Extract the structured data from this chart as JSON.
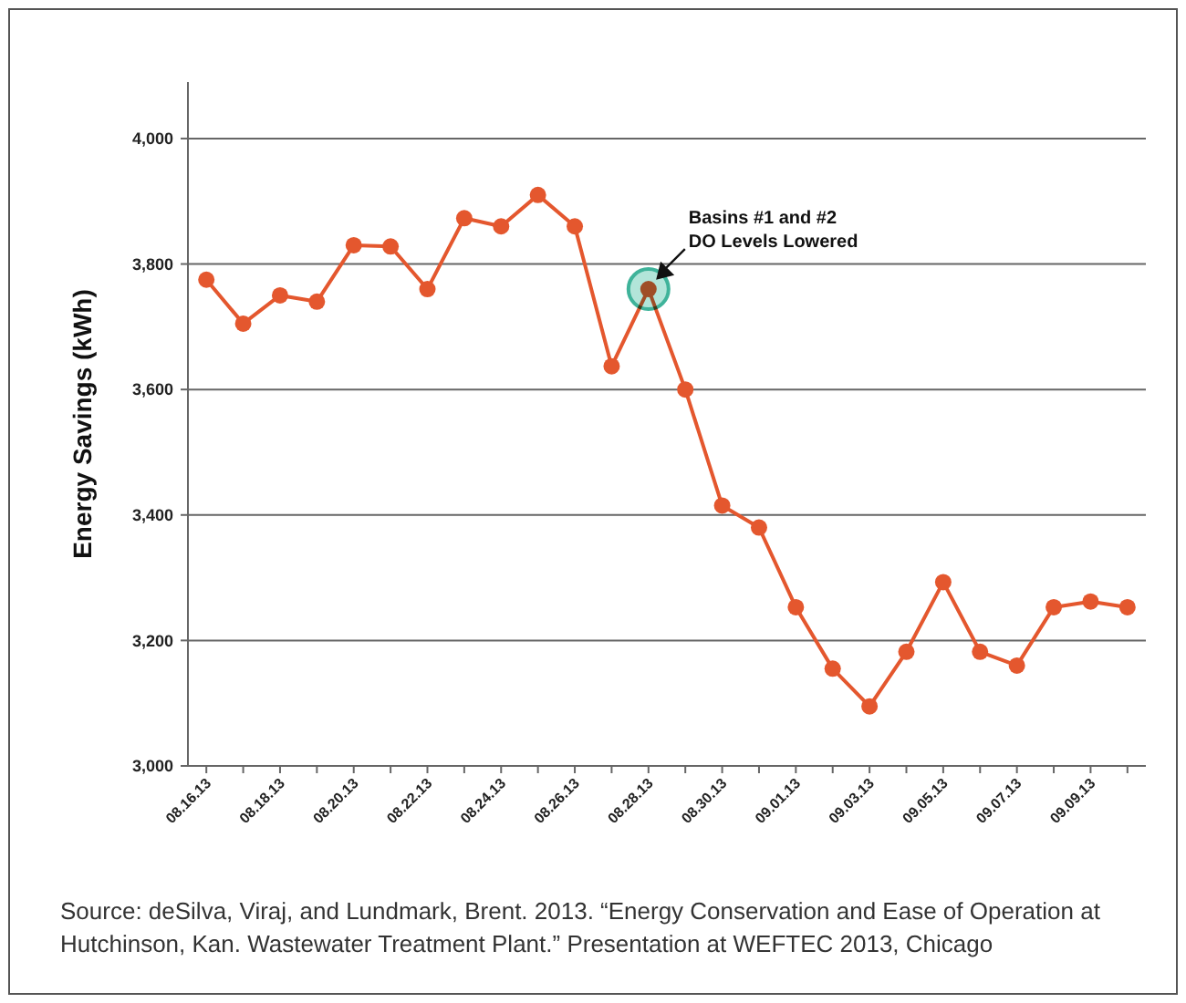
{
  "chart_data": {
    "type": "line",
    "ylabel": "Energy Savings (kWh)",
    "categories": [
      "08.16.13",
      null,
      "08.18.13",
      null,
      "08.20.13",
      null,
      "08.22.13",
      null,
      "08.24.13",
      null,
      "08.26.13",
      null,
      "08.28.13",
      null,
      "08.30.13",
      null,
      "09.01.13",
      null,
      "09.03.13",
      null,
      "09.05.13",
      null,
      "09.07.13",
      null,
      "09.09.13",
      null
    ],
    "series": [
      {
        "color": "#e4572e",
        "values": [
          3775,
          3705,
          3750,
          3740,
          3830,
          3828,
          3760,
          3873,
          3860,
          3910,
          3860,
          3637,
          3760,
          3600,
          3415,
          3380,
          3253,
          3155,
          3095,
          3182,
          3293,
          3182,
          3160,
          3253,
          3262,
          3253
        ]
      }
    ],
    "ylim": [
      3000,
      4090
    ],
    "yticks": [
      {
        "value": 3000,
        "label": "3,000"
      },
      {
        "value": 3200,
        "label": "3,200"
      },
      {
        "value": 3400,
        "label": "3,400"
      },
      {
        "value": 3600,
        "label": "3,600"
      },
      {
        "value": 3800,
        "label": "3,800"
      },
      {
        "value": 4000,
        "label": "4,000"
      }
    ],
    "grid": "y",
    "marker": "circle",
    "line_style": "solid",
    "annotations": [
      {
        "text": "Basins #1 and #2\nDO Levels Lowered",
        "x": "08.28.13",
        "y": 3760
      },
      "Source: deSilva, Viraj, and Lundmark, Brent. 2013. “Energy Conservation and Ease of Operation at Hutchinson, Kan. Wastewater Treatment Plant.” Presentation at WEFTEC 2013, Chicago"
    ]
  }
}
